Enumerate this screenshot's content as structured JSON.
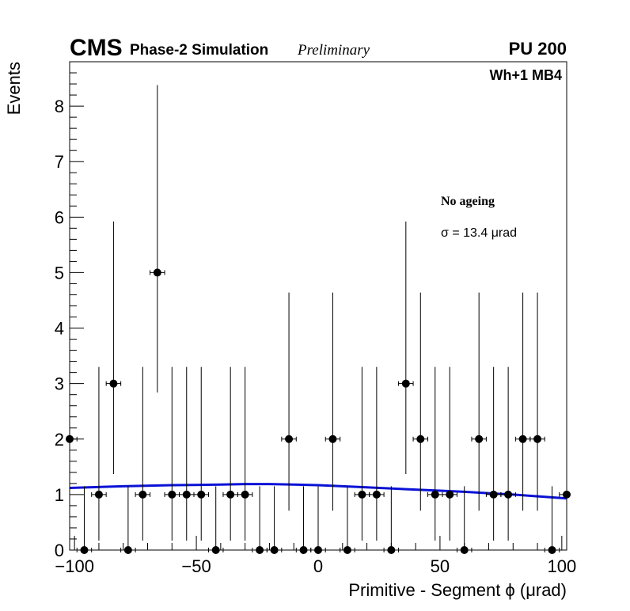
{
  "header": {
    "cms": "CMS",
    "simulation": "Phase-2 Simulation",
    "preliminary": "Preliminary",
    "pileup": "PU 200"
  },
  "colors": {
    "fit_line": "#0a12d6",
    "markers": "#000000"
  },
  "chart_data": {
    "type": "scatter",
    "title": "",
    "xlabel": "Primitive - Segment ϕ (μrad)",
    "ylabel": "Events",
    "xlim": [
      -102,
      102
    ],
    "ylim": [
      0,
      8.8
    ],
    "xticks": [
      -100,
      -50,
      0,
      50,
      100
    ],
    "xtick_labels": [
      "−100",
      "−50",
      "0",
      "50",
      "100"
    ],
    "yticks": [
      0,
      1,
      2,
      3,
      4,
      5,
      6,
      7,
      8
    ],
    "ytick_labels": [
      "0",
      "1",
      "2",
      "3",
      "4",
      "5",
      "6",
      "7",
      "8"
    ],
    "bin_width": 6,
    "x": [
      -102,
      -96,
      -90,
      -84,
      -78,
      -72,
      -66,
      -60,
      -54,
      -48,
      -42,
      -36,
      -30,
      -24,
      -18,
      -12,
      -6,
      0,
      6,
      12,
      18,
      24,
      30,
      36,
      42,
      48,
      54,
      60,
      66,
      72,
      78,
      84,
      90,
      96,
      102
    ],
    "series": [
      {
        "name": "Events",
        "values": [
          2,
          0,
          1,
          3,
          0,
          1,
          5,
          1,
          1,
          1,
          0,
          1,
          1,
          0,
          0,
          2,
          0,
          0,
          2,
          0,
          1,
          1,
          0,
          3,
          2,
          1,
          1,
          0,
          2,
          1,
          1,
          2,
          2,
          0,
          1
        ],
        "err_low": [
          1.29,
          0,
          0.83,
          1.63,
          0,
          0.83,
          2.16,
          0.83,
          0.83,
          0.83,
          0,
          0.83,
          0.83,
          0,
          0,
          1.29,
          0,
          0,
          1.29,
          0,
          0.83,
          0.83,
          0,
          1.63,
          1.29,
          0.83,
          0.83,
          0,
          1.29,
          0.83,
          0.83,
          1.29,
          1.29,
          0,
          0.83
        ],
        "err_high": [
          2.64,
          1.15,
          2.3,
          2.92,
          1.15,
          2.3,
          3.38,
          2.3,
          2.3,
          2.3,
          1.15,
          2.3,
          2.3,
          1.15,
          1.15,
          2.64,
          1.15,
          1.15,
          2.64,
          1.15,
          2.3,
          2.3,
          1.15,
          2.92,
          2.64,
          2.3,
          2.3,
          1.15,
          2.64,
          2.3,
          2.3,
          2.64,
          2.64,
          1.15,
          2.3
        ]
      },
      {
        "name": "Gaussian fit",
        "type": "line",
        "x": [
          -102,
          -80,
          -60,
          -40,
          -30,
          -20,
          -10,
          0,
          10,
          20,
          40,
          60,
          80,
          102
        ],
        "values": [
          1.12,
          1.15,
          1.17,
          1.18,
          1.19,
          1.19,
          1.18,
          1.17,
          1.15,
          1.13,
          1.09,
          1.05,
          1.0,
          0.93
        ]
      }
    ],
    "annotations": {
      "channel": "Wh+1 MB4",
      "condition": "No ageing",
      "sigma": "σ = 13.4  μrad"
    }
  }
}
